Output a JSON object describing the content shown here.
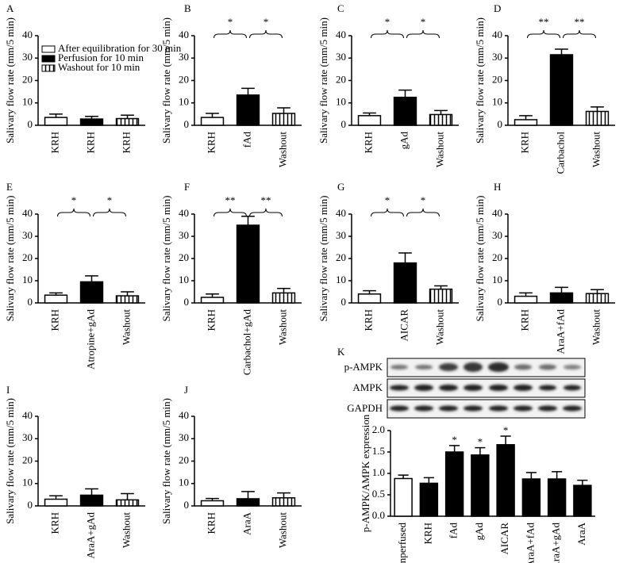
{
  "chart_data": [
    {
      "type": "bar",
      "panel": "A",
      "ylabel": "Salivary flow rate (mm/5 min)",
      "categories": [
        "KRH",
        "KRH",
        "KRH"
      ],
      "values": [
        3.5,
        2.8,
        3.0
      ],
      "errors": [
        1.5,
        1.2,
        1.5
      ],
      "fills": [
        "#ffffff",
        "#000000",
        "vertical-stripes"
      ],
      "ylim": [
        0,
        40
      ],
      "yticks": [
        0,
        10,
        20,
        30,
        40
      ],
      "legend": [
        "After equilibration for 30 min",
        "Perfusion for 10 min",
        "Washout for 10 min"
      ]
    },
    {
      "type": "bar",
      "panel": "B",
      "ylabel": "Salivary flow rate (mm/5 min)",
      "categories": [
        "KRH",
        "fAd",
        "Washout"
      ],
      "values": [
        3.5,
        13.5,
        5.3
      ],
      "errors": [
        1.8,
        3.0,
        2.5
      ],
      "fills": [
        "#ffffff",
        "#000000",
        "vertical-stripes"
      ],
      "ylim": [
        0,
        40
      ],
      "yticks": [
        0,
        10,
        20,
        30,
        40
      ],
      "significance": [
        "*",
        "*"
      ]
    },
    {
      "type": "bar",
      "panel": "C",
      "ylabel": "Salivary flow rate (mm/5 min)",
      "categories": [
        "KRH",
        "gAd",
        "Washout"
      ],
      "values": [
        4.3,
        12.5,
        4.8
      ],
      "errors": [
        1.2,
        3.2,
        1.8
      ],
      "fills": [
        "#ffffff",
        "#000000",
        "vertical-stripes"
      ],
      "ylim": [
        0,
        40
      ],
      "yticks": [
        0,
        10,
        20,
        30,
        40
      ],
      "significance": [
        "*",
        "*"
      ]
    },
    {
      "type": "bar",
      "panel": "D",
      "ylabel": "Salivary flow rate (mm/5 min)",
      "categories": [
        "KRH",
        "Carbachol",
        "Washout"
      ],
      "values": [
        2.5,
        31.5,
        6.2
      ],
      "errors": [
        1.8,
        2.5,
        2.0
      ],
      "fills": [
        "#ffffff",
        "#000000",
        "vertical-stripes"
      ],
      "ylim": [
        0,
        40
      ],
      "yticks": [
        0,
        10,
        20,
        30,
        40
      ],
      "significance": [
        "**",
        "**"
      ]
    },
    {
      "type": "bar",
      "panel": "E",
      "ylabel": "Salivary flow rate (mm/5 min)",
      "categories": [
        "KRH",
        "Atropine+gAd",
        "Washout"
      ],
      "values": [
        3.5,
        9.5,
        3.2
      ],
      "errors": [
        1.0,
        2.7,
        1.8
      ],
      "fills": [
        "#ffffff",
        "#000000",
        "vertical-stripes"
      ],
      "ylim": [
        0,
        40
      ],
      "yticks": [
        0,
        10,
        20,
        30,
        40
      ],
      "significance": [
        "*",
        "*"
      ]
    },
    {
      "type": "bar",
      "panel": "F",
      "ylabel": "Salivary flow rate (mm/5 min)",
      "categories": [
        "KRH",
        "Carbachol+gAd",
        "Washout"
      ],
      "values": [
        2.5,
        35.0,
        4.5
      ],
      "errors": [
        1.5,
        4.0,
        2.0
      ],
      "fills": [
        "#ffffff",
        "#000000",
        "vertical-stripes"
      ],
      "ylim": [
        0,
        40
      ],
      "yticks": [
        0,
        10,
        20,
        30,
        40
      ],
      "significance": [
        "**",
        "**"
      ]
    },
    {
      "type": "bar",
      "panel": "G",
      "ylabel": "Salivary flow rate (mm/5 min)",
      "categories": [
        "KRH",
        "AICAR",
        "Washout"
      ],
      "values": [
        4.0,
        18.0,
        6.2
      ],
      "errors": [
        1.5,
        4.5,
        1.5
      ],
      "fills": [
        "#ffffff",
        "#000000",
        "vertical-stripes"
      ],
      "ylim": [
        0,
        40
      ],
      "yticks": [
        0,
        10,
        20,
        30,
        40
      ],
      "significance": [
        "*",
        "*"
      ]
    },
    {
      "type": "bar",
      "panel": "H",
      "ylabel": "Salivary flow rate (mm/5 min)",
      "categories": [
        "KRH",
        "AraA+fAd",
        "Washout"
      ],
      "values": [
        3.0,
        4.5,
        4.2
      ],
      "errors": [
        1.5,
        2.5,
        1.8
      ],
      "fills": [
        "#ffffff",
        "#000000",
        "vertical-stripes"
      ],
      "ylim": [
        0,
        40
      ],
      "yticks": [
        0,
        10,
        20,
        30,
        40
      ]
    },
    {
      "type": "bar",
      "panel": "I",
      "ylabel": "Salivary flow rate (mm/5 min)",
      "categories": [
        "KRH",
        "AraA+gAd",
        "Washout"
      ],
      "values": [
        3.0,
        4.8,
        2.7
      ],
      "errors": [
        1.5,
        2.8,
        2.8
      ],
      "fills": [
        "#ffffff",
        "#000000",
        "vertical-stripes"
      ],
      "ylim": [
        0,
        40
      ],
      "yticks": [
        0,
        10,
        20,
        30,
        40
      ]
    },
    {
      "type": "bar",
      "panel": "J",
      "ylabel": "Salivary flow rate (mm/5 min)",
      "categories": [
        "KRH",
        "AraA",
        "Washout"
      ],
      "values": [
        2.3,
        3.2,
        3.6
      ],
      "errors": [
        1.0,
        3.2,
        2.2
      ],
      "fills": [
        "#ffffff",
        "#000000",
        "vertical-stripes"
      ],
      "ylim": [
        0,
        40
      ],
      "yticks": [
        0,
        10,
        20,
        30,
        40
      ]
    },
    {
      "type": "bar",
      "panel": "K",
      "ylabel": "p-AMPK/AMPK expression",
      "blot_labels": [
        "p-AMPK",
        "AMPK",
        "GAPDH"
      ],
      "categories": [
        "Unperfused",
        "KRH",
        "fAd",
        "gAd",
        "AICAR",
        "AraA+fAd",
        "AraA+gAd",
        "AraA"
      ],
      "values": [
        0.88,
        0.77,
        1.5,
        1.43,
        1.67,
        0.87,
        0.87,
        0.72
      ],
      "errors": [
        0.08,
        0.13,
        0.15,
        0.17,
        0.2,
        0.15,
        0.17,
        0.12
      ],
      "fills": [
        "#ffffff",
        "#000000",
        "#000000",
        "#000000",
        "#000000",
        "#000000",
        "#000000",
        "#000000"
      ],
      "ylim": [
        0,
        2
      ],
      "yticks": [
        {
          "value": 0,
          "label": "0.0"
        },
        {
          "value": 0.5,
          "label": "0.5"
        },
        {
          "value": 1,
          "label": "1.0"
        },
        {
          "value": 1.5,
          "label": "1.5"
        },
        {
          "value": 2,
          "label": "2.0"
        }
      ],
      "significance": [
        null,
        null,
        "*",
        "*",
        "*",
        null,
        null,
        null
      ]
    }
  ]
}
